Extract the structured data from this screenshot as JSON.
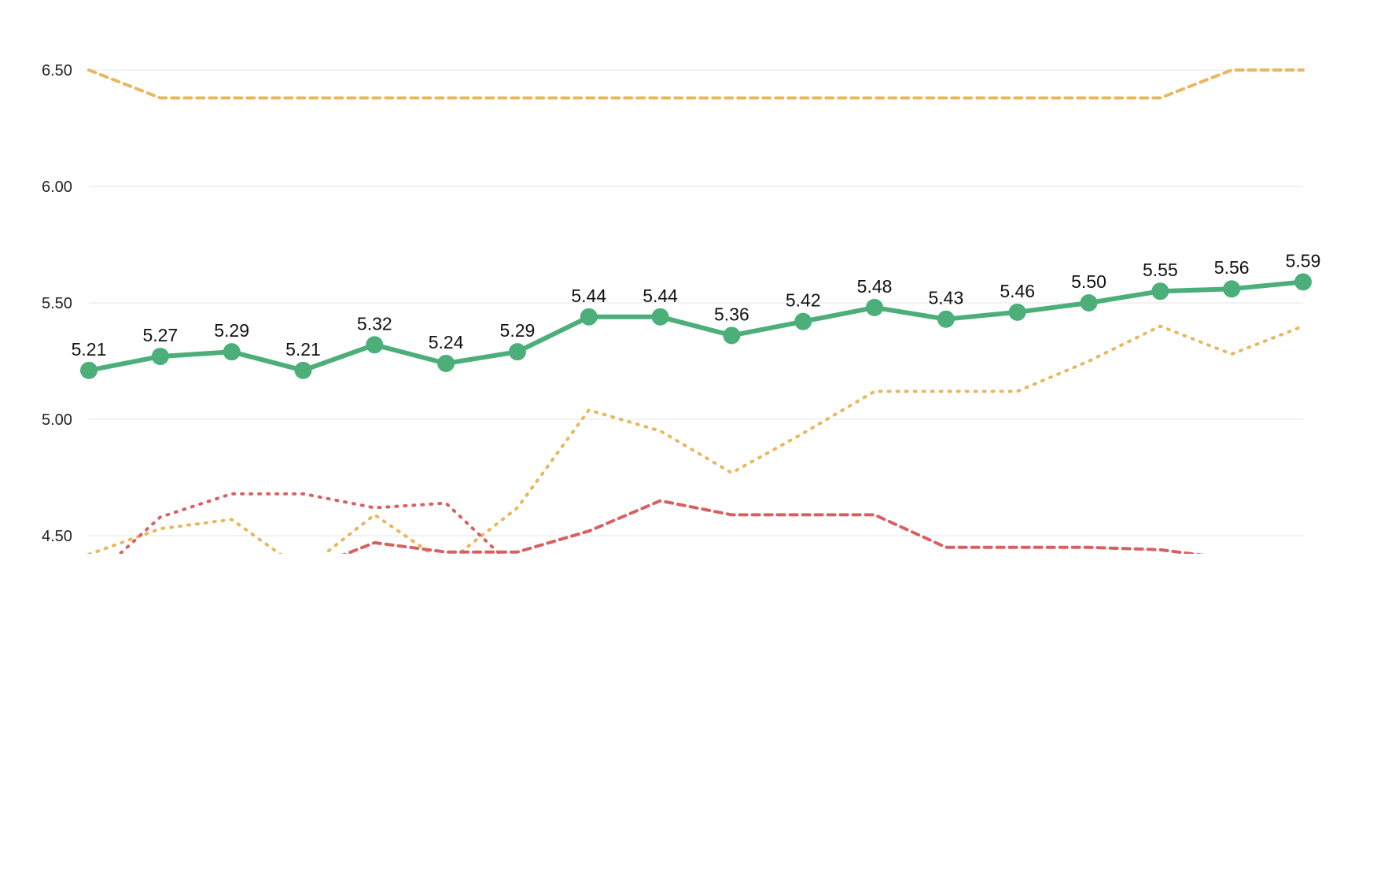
{
  "chart_data": {
    "type": "line",
    "title": "",
    "xlabel": "",
    "ylabel": "",
    "ylim": [
      4.42,
      6.5
    ],
    "y_ticks": [
      "4.50",
      "5.00",
      "5.50",
      "6.00",
      "6.50"
    ],
    "grid": true,
    "legend": "none",
    "x": [
      1,
      2,
      3,
      4,
      5,
      6,
      7,
      8,
      9,
      10,
      11,
      12,
      13,
      14,
      15,
      16,
      17,
      18
    ],
    "series": [
      {
        "values": [
          5.21,
          5.27,
          5.29,
          5.21,
          5.32,
          5.24,
          5.29,
          5.44,
          5.44,
          5.36,
          5.42,
          5.48,
          5.43,
          5.46,
          5.5,
          5.55,
          5.56,
          5.59
        ],
        "labels": [
          "5.21",
          "5.27",
          "5.29",
          "5.21",
          "5.32",
          "5.24",
          "5.29",
          "5.44",
          "5.44",
          "5.36",
          "5.42",
          "5.48",
          "5.43",
          "5.46",
          "5.50",
          "5.55",
          "5.56",
          "5.59"
        ],
        "color": "#4caf7a",
        "style": "solid",
        "markers": true,
        "show_labels": true
      },
      {
        "values": [
          6.5,
          6.38,
          6.38,
          6.38,
          6.38,
          6.38,
          6.38,
          6.38,
          6.38,
          6.38,
          6.38,
          6.38,
          6.38,
          6.38,
          6.38,
          6.38,
          6.5,
          6.5
        ],
        "color": "#e8b85e",
        "style": "dashed",
        "markers": false,
        "show_labels": false
      },
      {
        "values": [
          4.42,
          4.53,
          4.57,
          4.35,
          4.59,
          4.38,
          4.62,
          5.04,
          4.95,
          4.77,
          4.94,
          5.12,
          5.12,
          5.12,
          5.25,
          5.4,
          5.28,
          5.4
        ],
        "color": "#e8b85e",
        "style": "dotted",
        "markers": false,
        "show_labels": false
      },
      {
        "values": [
          4.3,
          4.58,
          4.68,
          4.68,
          4.62,
          4.64,
          4.35,
          null,
          null,
          null,
          null,
          null,
          null,
          null,
          null,
          null,
          null,
          null
        ],
        "color": "#d96060",
        "style": "dotted",
        "markers": false,
        "show_labels": false
      },
      {
        "values": [
          null,
          null,
          null,
          4.35,
          4.47,
          4.43,
          4.43,
          4.52,
          4.65,
          4.59,
          4.59,
          4.59,
          4.45,
          4.45,
          4.45,
          4.44,
          4.4,
          null
        ],
        "color": "#d96060",
        "style": "dashed",
        "markers": false,
        "show_labels": false
      }
    ]
  }
}
